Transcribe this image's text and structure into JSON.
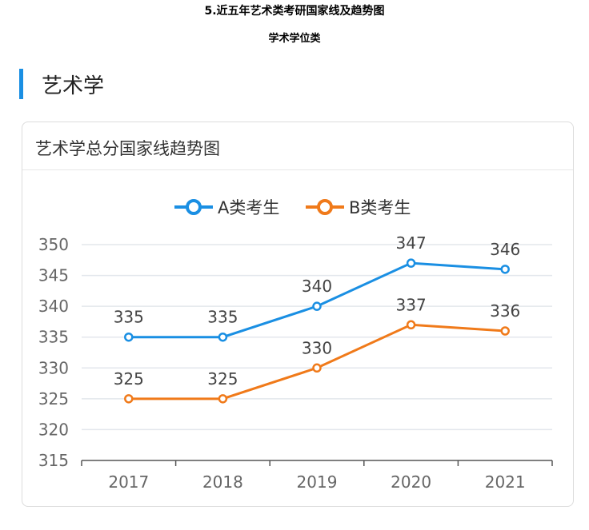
{
  "document": {
    "title": "5.近五年艺术类考研国家线及趋势图",
    "subtitle": "学术学位类"
  },
  "section": {
    "title": "艺术学",
    "accent_color": "#1a8fe3"
  },
  "card": {
    "title": "艺术学总分国家线趋势图"
  },
  "chart_data": {
    "type": "line",
    "title": "艺术学总分国家线趋势图",
    "xlabel": "",
    "ylabel": "",
    "categories": [
      "2017",
      "2018",
      "2019",
      "2020",
      "2021"
    ],
    "yticks": [
      "315",
      "320",
      "325",
      "330",
      "335",
      "340",
      "345",
      "350"
    ],
    "ylim": [
      315,
      350
    ],
    "grid": true,
    "legend_position": "top-center",
    "series": [
      {
        "name": "A类考生",
        "color": "#1a8fe3",
        "values": [
          335,
          335,
          340,
          347,
          346
        ],
        "labels": [
          "335",
          "335",
          "340",
          "347",
          "346"
        ]
      },
      {
        "name": "B类考生",
        "color": "#f07a1a",
        "values": [
          325,
          325,
          330,
          337,
          336
        ],
        "labels": [
          "325",
          "325",
          "330",
          "337",
          "336"
        ]
      }
    ]
  }
}
